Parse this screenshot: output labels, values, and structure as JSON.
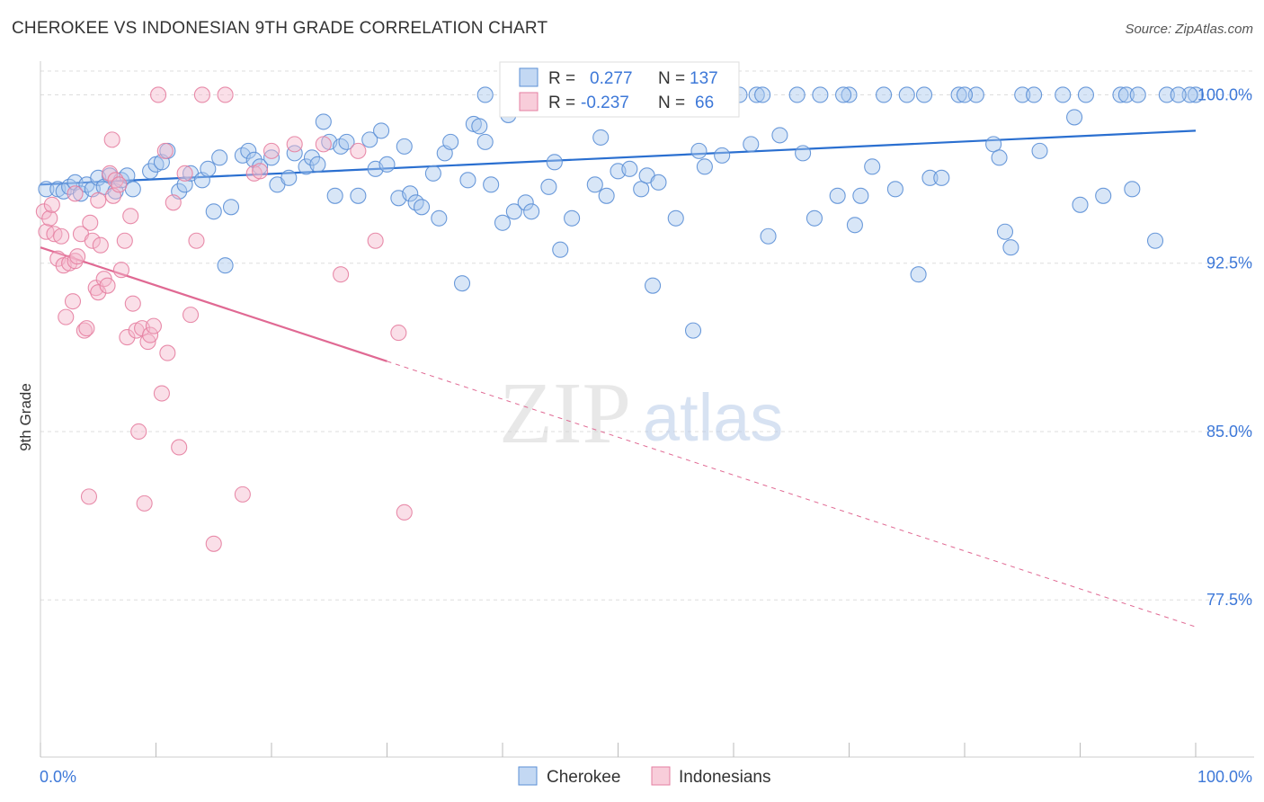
{
  "header": {
    "title": "CHEROKEE VS INDONESIAN 9TH GRADE CORRELATION CHART",
    "source": "Source: ZipAtlas.com"
  },
  "watermark": {
    "zip": "ZIP",
    "atlas": "atlas"
  },
  "legend": {
    "r_label": "R =",
    "n_label": "N =",
    "entries": [
      {
        "r": "0.277",
        "n": "137"
      },
      {
        "r": "-0.237",
        "n": "66"
      }
    ]
  },
  "colors": {
    "cherokee_fill": "#a9c8ee",
    "cherokee_stroke": "#5b8fd6",
    "cherokee_line": "#2a6fd0",
    "indonesian_fill": "#f5b8cb",
    "indonesian_stroke": "#e57fa1",
    "indonesian_line": "#e06993",
    "tick_text": "#3d78d8",
    "grid": "#dddddd"
  },
  "chart_data": {
    "type": "scatter",
    "title": "CHEROKEE VS INDONESIAN 9TH GRADE CORRELATION CHART",
    "xlabel": "",
    "ylabel": "9th Grade",
    "xlim": [
      0,
      100
    ],
    "ylim": [
      70.5,
      101.5
    ],
    "x_ticks": [
      "0.0%",
      "100.0%"
    ],
    "y_ticks": [
      {
        "value": 100.0,
        "label": "100.0%"
      },
      {
        "value": 92.5,
        "label": "92.5%"
      },
      {
        "value": 85.0,
        "label": "85.0%"
      },
      {
        "value": 77.5,
        "label": "77.5%"
      }
    ],
    "grid": true,
    "legend_position": "top-center",
    "series": [
      {
        "name": "Cherokee",
        "r": 0.277,
        "n": 137,
        "trend": {
          "x": [
            0,
            100
          ],
          "y": [
            96.0,
            98.4
          ],
          "solid_until": 100
        },
        "points": [
          [
            0.5,
            95.8
          ],
          [
            1.5,
            95.8
          ],
          [
            2.0,
            95.7
          ],
          [
            2.5,
            95.9
          ],
          [
            3.0,
            96.1
          ],
          [
            3.5,
            95.6
          ],
          [
            4.0,
            96.0
          ],
          [
            4.5,
            95.8
          ],
          [
            5.0,
            96.3
          ],
          [
            5.5,
            95.9
          ],
          [
            6.0,
            96.4
          ],
          [
            6.5,
            95.7
          ],
          [
            7.0,
            96.2
          ],
          [
            7.5,
            96.4
          ],
          [
            8.0,
            95.8
          ],
          [
            9.5,
            96.6
          ],
          [
            10.0,
            96.9
          ],
          [
            10.5,
            97.0
          ],
          [
            11.0,
            97.5
          ],
          [
            12.0,
            95.7
          ],
          [
            12.5,
            96.0
          ],
          [
            13.0,
            96.5
          ],
          [
            14.0,
            96.2
          ],
          [
            14.5,
            96.7
          ],
          [
            15.0,
            94.8
          ],
          [
            15.5,
            97.2
          ],
          [
            16.0,
            92.4
          ],
          [
            16.5,
            95.0
          ],
          [
            17.5,
            97.3
          ],
          [
            18.0,
            97.5
          ],
          [
            18.5,
            97.1
          ],
          [
            19.0,
            96.8
          ],
          [
            20.0,
            97.2
          ],
          [
            20.5,
            96.0
          ],
          [
            21.5,
            96.3
          ],
          [
            22.0,
            97.4
          ],
          [
            23.0,
            96.8
          ],
          [
            23.5,
            97.2
          ],
          [
            24.0,
            96.9
          ],
          [
            24.5,
            98.8
          ],
          [
            25.0,
            97.9
          ],
          [
            25.5,
            95.5
          ],
          [
            26.0,
            97.7
          ],
          [
            26.5,
            97.9
          ],
          [
            27.5,
            95.5
          ],
          [
            28.5,
            98.0
          ],
          [
            29.0,
            96.7
          ],
          [
            29.5,
            98.4
          ],
          [
            30.0,
            96.9
          ],
          [
            31.0,
            95.4
          ],
          [
            31.5,
            97.7
          ],
          [
            32.0,
            95.6
          ],
          [
            32.5,
            95.2
          ],
          [
            33.0,
            95.0
          ],
          [
            34.0,
            96.5
          ],
          [
            34.5,
            94.5
          ],
          [
            35.0,
            97.4
          ],
          [
            35.5,
            97.9
          ],
          [
            36.5,
            91.6
          ],
          [
            37.0,
            96.2
          ],
          [
            37.5,
            98.7
          ],
          [
            38.0,
            98.6
          ],
          [
            38.5,
            97.9
          ],
          [
            39.0,
            96.0
          ],
          [
            40.0,
            94.3
          ],
          [
            40.5,
            99.1
          ],
          [
            41.0,
            94.8
          ],
          [
            42.0,
            95.2
          ],
          [
            42.5,
            94.8
          ],
          [
            43.0,
            100.0
          ],
          [
            44.0,
            95.9
          ],
          [
            44.5,
            97.0
          ],
          [
            45.0,
            93.1
          ],
          [
            45.5,
            100.0
          ],
          [
            46.0,
            94.5
          ],
          [
            47.5,
            100.0
          ],
          [
            48.0,
            96.0
          ],
          [
            48.5,
            98.1
          ],
          [
            49.0,
            95.5
          ],
          [
            49.5,
            100.0
          ],
          [
            50.0,
            96.6
          ],
          [
            51.0,
            96.7
          ],
          [
            52.0,
            95.8
          ],
          [
            52.5,
            96.4
          ],
          [
            53.0,
            91.5
          ],
          [
            53.5,
            96.1
          ],
          [
            54.5,
            100.0
          ],
          [
            55.0,
            94.5
          ],
          [
            56.5,
            89.5
          ],
          [
            57.0,
            97.5
          ],
          [
            57.5,
            96.8
          ],
          [
            58.0,
            100.0
          ],
          [
            59.0,
            97.3
          ],
          [
            60.5,
            100.0
          ],
          [
            61.5,
            97.8
          ],
          [
            62.0,
            100.0
          ],
          [
            63.0,
            93.7
          ],
          [
            64.0,
            98.2
          ],
          [
            65.5,
            100.0
          ],
          [
            66.0,
            97.4
          ],
          [
            67.0,
            94.5
          ],
          [
            67.5,
            100.0
          ],
          [
            69.0,
            95.5
          ],
          [
            70.0,
            100.0
          ],
          [
            70.5,
            94.2
          ],
          [
            71.0,
            95.5
          ],
          [
            72.0,
            96.8
          ],
          [
            73.0,
            100.0
          ],
          [
            74.0,
            95.8
          ],
          [
            75.0,
            100.0
          ],
          [
            76.0,
            92.0
          ],
          [
            77.0,
            96.3
          ],
          [
            78.0,
            96.3
          ],
          [
            79.5,
            100.0
          ],
          [
            81.0,
            100.0
          ],
          [
            82.5,
            97.8
          ],
          [
            83.0,
            97.2
          ],
          [
            83.5,
            93.9
          ],
          [
            84.0,
            93.2
          ],
          [
            85.0,
            100.0
          ],
          [
            86.5,
            97.5
          ],
          [
            88.5,
            100.0
          ],
          [
            89.5,
            99.0
          ],
          [
            90.0,
            95.1
          ],
          [
            92.0,
            95.5
          ],
          [
            93.5,
            100.0
          ],
          [
            94.0,
            100.0
          ],
          [
            94.5,
            95.8
          ],
          [
            97.5,
            100.0
          ],
          [
            100.0,
            100.0
          ],
          [
            99.5,
            100.0
          ],
          [
            96.5,
            93.5
          ],
          [
            98.5,
            100.0
          ],
          [
            95.0,
            100.0
          ],
          [
            90.5,
            100.0
          ],
          [
            86.0,
            100.0
          ],
          [
            80.0,
            100.0
          ],
          [
            76.5,
            100.0
          ],
          [
            69.5,
            100.0
          ],
          [
            62.5,
            100.0
          ],
          [
            58.5,
            100.0
          ],
          [
            55.5,
            100.0
          ],
          [
            51.5,
            100.0
          ],
          [
            46.5,
            100.0
          ],
          [
            44.0,
            100.0
          ],
          [
            38.5,
            100.0
          ],
          [
            41.5,
            100.0
          ]
        ]
      },
      {
        "name": "Indonesians",
        "r": -0.237,
        "n": 66,
        "trend": {
          "x": [
            0,
            100
          ],
          "y": [
            93.2,
            76.3
          ],
          "solid_until": 30
        },
        "points": [
          [
            0.3,
            94.8
          ],
          [
            0.5,
            93.9
          ],
          [
            0.8,
            94.5
          ],
          [
            1.0,
            95.1
          ],
          [
            1.2,
            93.8
          ],
          [
            1.5,
            92.7
          ],
          [
            1.8,
            93.7
          ],
          [
            2.0,
            92.4
          ],
          [
            2.2,
            90.1
          ],
          [
            2.5,
            92.5
          ],
          [
            2.8,
            90.8
          ],
          [
            3.0,
            92.6
          ],
          [
            3.2,
            92.8
          ],
          [
            3.5,
            93.8
          ],
          [
            3.8,
            89.5
          ],
          [
            4.0,
            89.6
          ],
          [
            4.3,
            94.3
          ],
          [
            4.5,
            93.5
          ],
          [
            4.8,
            91.4
          ],
          [
            5.0,
            91.2
          ],
          [
            5.2,
            93.3
          ],
          [
            5.5,
            91.8
          ],
          [
            5.8,
            91.5
          ],
          [
            6.0,
            96.5
          ],
          [
            6.3,
            95.5
          ],
          [
            6.5,
            96.2
          ],
          [
            6.8,
            96.0
          ],
          [
            7.0,
            92.2
          ],
          [
            7.3,
            93.5
          ],
          [
            7.5,
            89.2
          ],
          [
            7.8,
            94.6
          ],
          [
            8.0,
            90.7
          ],
          [
            8.3,
            89.5
          ],
          [
            8.5,
            85.0
          ],
          [
            8.8,
            89.6
          ],
          [
            9.0,
            81.8
          ],
          [
            9.3,
            89.0
          ],
          [
            9.5,
            89.3
          ],
          [
            9.8,
            89.7
          ],
          [
            10.2,
            100.0
          ],
          [
            10.5,
            86.7
          ],
          [
            10.8,
            97.5
          ],
          [
            11.0,
            88.5
          ],
          [
            11.5,
            95.2
          ],
          [
            12.0,
            84.3
          ],
          [
            12.5,
            96.5
          ],
          [
            13.0,
            90.2
          ],
          [
            13.5,
            93.5
          ],
          [
            14.0,
            100.0
          ],
          [
            15.0,
            80.0
          ],
          [
            16.0,
            100.0
          ],
          [
            17.5,
            82.2
          ],
          [
            18.5,
            96.5
          ],
          [
            19.0,
            96.6
          ],
          [
            20.0,
            97.5
          ],
          [
            22.0,
            97.8
          ],
          [
            24.5,
            97.8
          ],
          [
            26.0,
            92.0
          ],
          [
            27.5,
            97.5
          ],
          [
            29.0,
            93.5
          ],
          [
            31.0,
            89.4
          ],
          [
            31.5,
            81.4
          ],
          [
            4.2,
            82.1
          ],
          [
            6.2,
            98.0
          ],
          [
            5.0,
            95.3
          ],
          [
            3.0,
            95.6
          ]
        ]
      }
    ]
  },
  "bottom_legend": {
    "items": [
      {
        "label": "Cherokee"
      },
      {
        "label": "Indonesians"
      }
    ]
  }
}
